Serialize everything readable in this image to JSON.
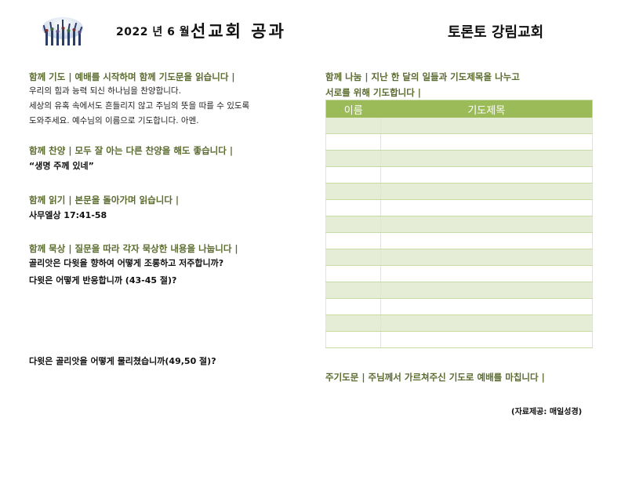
{
  "header": {
    "date": "2022 년 6 월",
    "title": "선교회 공과",
    "church": "토론토 강림교회"
  },
  "left": {
    "prayer_heading": "함께 기도 | 예배를 시작하며 함께 기도문을 읽습니다 |",
    "prayer_lines": [
      "우리의 힘과 능력 되신 하나님을 찬양합니다.",
      "세상의 유혹 속에서도 흔들리지 않고 주님의 뜻을 따를 수 있도록",
      "도와주세요. 예수님의 이름으로 기도합니다. 아멘."
    ],
    "hymn_heading": "함께 찬양 | 모두 잘 아는 다른 찬양을 해도 좋습니다 |",
    "hymn": "“생명 주께 있네”",
    "reading_heading": "함께 읽기 | 본문을 돌아가며 읽습니다 |",
    "reading": "사무엘상 17:41-58",
    "meditation_heading": "함께 묵상 | 질문을 따라 각자 묵상한 내용을 나눕니다 |",
    "questions": [
      "골리앗은 다윗을 향하여 어떻게 조롱하고 저주합니까?",
      "다윗은 어떻게 반응합니까 (43-45 절)?",
      "다윗은 골리앗을 어떻게 물리쳤습니까(49,50 절)?"
    ]
  },
  "right": {
    "sharing_heading_1": "함께 나눔 | 지난 한 달의 일들과 기도제목을 나누고",
    "sharing_heading_2": "서로를 위해 기도합니다 |",
    "table_headers": [
      "이름",
      "기도제목"
    ],
    "closing": "주기도문 | 주님께서 가르쳐주신 기도로 예배를 마칩니다 |"
  },
  "credit": "(자료제공: 매일성경)",
  "colors": {
    "accent": "#9bbb59",
    "heading_text": "#5b6b2f",
    "row_shade": "#e6edd6"
  }
}
